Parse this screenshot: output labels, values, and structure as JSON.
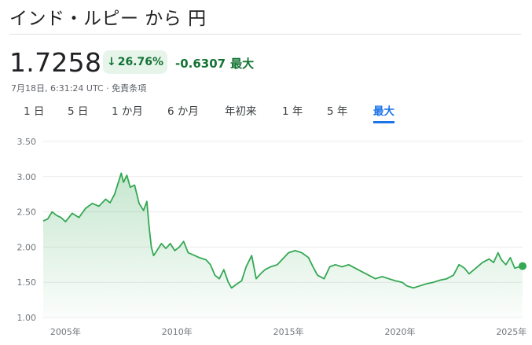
{
  "header": {
    "title": "インド・ルピー から 円"
  },
  "quote": {
    "price": "1.7258",
    "percent_change": "26.76%",
    "change": "-0.6307",
    "period_label": "最大",
    "timestamp": "7月18日, 6:31:24 UTC · 免責条項"
  },
  "colors": {
    "up_green": "#137333",
    "badge_bg": "#e6f4ea",
    "line": "#34a853",
    "accent": "#1a73e8"
  },
  "icons": {
    "change_arrow": "arrow-down-icon"
  },
  "tabs": [
    {
      "label": "1 日",
      "active": false
    },
    {
      "label": "5 日",
      "active": false
    },
    {
      "label": "1 か月",
      "active": false
    },
    {
      "label": "6 か月",
      "active": false
    },
    {
      "label": "年初来",
      "active": false
    },
    {
      "label": "1 年",
      "active": false
    },
    {
      "label": "5 年",
      "active": false
    },
    {
      "label": "最大",
      "active": true
    }
  ],
  "chart_data": {
    "type": "area",
    "y_tick_labels": [
      "3.50",
      "3.00",
      "2.50",
      "2.00",
      "1.50",
      "1.00"
    ],
    "x_tick_labels": [
      "2005年",
      "2010年",
      "2015年",
      "2020年",
      "2025年"
    ],
    "ylim": [
      1.0,
      3.5
    ],
    "xlim": [
      2004.0,
      2025.5
    ],
    "grid": true,
    "series": [
      {
        "points": [
          [
            2004.0,
            2.37
          ],
          [
            2004.2,
            2.4
          ],
          [
            2004.4,
            2.5
          ],
          [
            2004.6,
            2.45
          ],
          [
            2004.8,
            2.42
          ],
          [
            2005.0,
            2.36
          ],
          [
            2005.3,
            2.48
          ],
          [
            2005.6,
            2.42
          ],
          [
            2005.9,
            2.55
          ],
          [
            2006.2,
            2.62
          ],
          [
            2006.5,
            2.58
          ],
          [
            2006.8,
            2.68
          ],
          [
            2007.0,
            2.63
          ],
          [
            2007.2,
            2.75
          ],
          [
            2007.4,
            2.95
          ],
          [
            2007.5,
            3.05
          ],
          [
            2007.6,
            2.92
          ],
          [
            2007.75,
            3.02
          ],
          [
            2007.9,
            2.85
          ],
          [
            2008.1,
            2.88
          ],
          [
            2008.3,
            2.62
          ],
          [
            2008.5,
            2.52
          ],
          [
            2008.65,
            2.65
          ],
          [
            2008.75,
            2.28
          ],
          [
            2008.85,
            2.0
          ],
          [
            2008.95,
            1.88
          ],
          [
            2009.1,
            1.95
          ],
          [
            2009.3,
            2.05
          ],
          [
            2009.5,
            1.98
          ],
          [
            2009.7,
            2.05
          ],
          [
            2009.9,
            1.95
          ],
          [
            2010.1,
            2.0
          ],
          [
            2010.3,
            2.08
          ],
          [
            2010.5,
            1.92
          ],
          [
            2010.8,
            1.88
          ],
          [
            2011.0,
            1.85
          ],
          [
            2011.3,
            1.82
          ],
          [
            2011.5,
            1.75
          ],
          [
            2011.7,
            1.6
          ],
          [
            2011.9,
            1.55
          ],
          [
            2012.1,
            1.68
          ],
          [
            2012.3,
            1.5
          ],
          [
            2012.45,
            1.42
          ],
          [
            2012.7,
            1.48
          ],
          [
            2012.9,
            1.52
          ],
          [
            2013.1,
            1.72
          ],
          [
            2013.35,
            1.88
          ],
          [
            2013.55,
            1.55
          ],
          [
            2013.75,
            1.62
          ],
          [
            2013.95,
            1.68
          ],
          [
            2014.2,
            1.72
          ],
          [
            2014.5,
            1.75
          ],
          [
            2014.8,
            1.85
          ],
          [
            2015.0,
            1.92
          ],
          [
            2015.3,
            1.95
          ],
          [
            2015.6,
            1.92
          ],
          [
            2015.9,
            1.85
          ],
          [
            2016.1,
            1.72
          ],
          [
            2016.3,
            1.6
          ],
          [
            2016.6,
            1.55
          ],
          [
            2016.85,
            1.72
          ],
          [
            2017.1,
            1.75
          ],
          [
            2017.4,
            1.72
          ],
          [
            2017.7,
            1.75
          ],
          [
            2018.0,
            1.7
          ],
          [
            2018.3,
            1.65
          ],
          [
            2018.6,
            1.6
          ],
          [
            2018.9,
            1.55
          ],
          [
            2019.2,
            1.58
          ],
          [
            2019.5,
            1.55
          ],
          [
            2019.8,
            1.52
          ],
          [
            2020.1,
            1.5
          ],
          [
            2020.3,
            1.45
          ],
          [
            2020.6,
            1.42
          ],
          [
            2020.9,
            1.45
          ],
          [
            2021.2,
            1.48
          ],
          [
            2021.5,
            1.5
          ],
          [
            2021.8,
            1.53
          ],
          [
            2022.1,
            1.55
          ],
          [
            2022.4,
            1.6
          ],
          [
            2022.65,
            1.75
          ],
          [
            2022.9,
            1.7
          ],
          [
            2023.1,
            1.62
          ],
          [
            2023.4,
            1.7
          ],
          [
            2023.7,
            1.78
          ],
          [
            2024.0,
            1.83
          ],
          [
            2024.2,
            1.78
          ],
          [
            2024.4,
            1.92
          ],
          [
            2024.55,
            1.82
          ],
          [
            2024.75,
            1.75
          ],
          [
            2024.95,
            1.85
          ],
          [
            2025.15,
            1.7
          ],
          [
            2025.35,
            1.72
          ],
          [
            2025.5,
            1.73
          ]
        ]
      }
    ]
  }
}
